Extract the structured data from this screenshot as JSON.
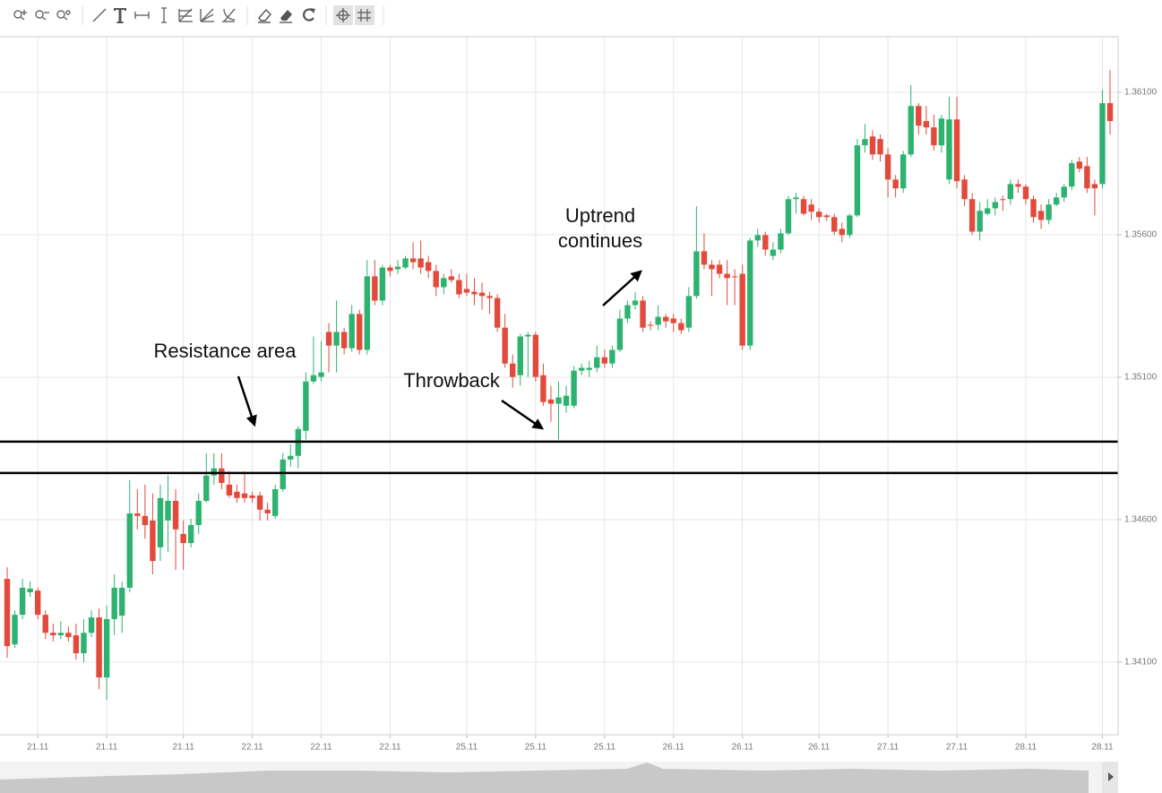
{
  "chart_data": {
    "type": "candlestick",
    "up_color": "#2db36f",
    "down_color": "#e24a3b",
    "ylim": [
      1.33845,
      1.36292
    ],
    "yticks": [
      {
        "value": 1.341,
        "label": "1.34100"
      },
      {
        "value": 1.346,
        "label": "1.34600"
      },
      {
        "value": 1.351,
        "label": "1.35100"
      },
      {
        "value": 1.356,
        "label": "1.35600"
      },
      {
        "value": 1.361,
        "label": "1.36100"
      }
    ],
    "grid": true,
    "categories": [
      null,
      null,
      null,
      null,
      "21.11",
      null,
      null,
      null,
      null,
      null,
      null,
      null,
      null,
      "21.11",
      null,
      null,
      null,
      null,
      null,
      null,
      null,
      null,
      null,
      "21.11",
      null,
      null,
      null,
      null,
      null,
      null,
      null,
      null,
      "22.11",
      null,
      null,
      null,
      null,
      null,
      null,
      null,
      null,
      "22.11",
      null,
      null,
      null,
      null,
      null,
      null,
      null,
      null,
      "22.11",
      null,
      null,
      null,
      null,
      null,
      null,
      null,
      null,
      null,
      "25.11",
      null,
      null,
      null,
      null,
      null,
      null,
      null,
      null,
      "25.11",
      null,
      null,
      null,
      null,
      null,
      null,
      null,
      null,
      "25.11",
      null,
      null,
      null,
      null,
      null,
      null,
      null,
      null,
      "26.11",
      null,
      null,
      null,
      null,
      null,
      null,
      null,
      null,
      "26.11",
      null,
      null,
      null,
      null,
      null,
      null,
      null,
      null,
      null,
      "26.11",
      null,
      null,
      null,
      null,
      null,
      null,
      null,
      null,
      "27.11",
      null,
      null,
      null,
      null,
      null,
      null,
      null,
      null,
      "27.11",
      null,
      null,
      null,
      null,
      null,
      null,
      null,
      null,
      "28.11",
      null,
      null,
      null,
      null,
      null,
      null,
      null,
      null,
      null,
      "28.11",
      null
    ],
    "open": [
      1.34392,
      1.34162,
      1.34266,
      1.34345,
      1.34351,
      1.34266,
      1.34203,
      1.34194,
      1.34203,
      1.34194,
      1.34131,
      1.34203,
      1.34257,
      1.34046,
      1.34251,
      1.34263,
      1.34361,
      1.34622,
      1.34613,
      1.34597,
      1.34503,
      1.34597,
      1.34666,
      1.3455,
      1.34518,
      1.34581,
      1.34666,
      1.34755,
      1.3478,
      1.34723,
      1.34698,
      1.34692,
      1.34685,
      1.34685,
      1.34635,
      1.34613,
      1.34707,
      1.34811,
      1.34824,
      1.34912,
      1.35085,
      1.35101,
      1.35259,
      1.35211,
      1.35259,
      1.35202,
      1.35322,
      1.35196,
      1.35454,
      1.35369,
      1.35485,
      1.35479,
      1.35485,
      1.35517,
      1.35517,
      1.35504,
      1.35473,
      1.35416,
      1.35454,
      1.35441,
      1.3541,
      1.354,
      1.35397,
      1.35385,
      1.35378,
      1.35274,
      1.35148,
      1.35107,
      1.35243,
      1.35249,
      1.35107,
      1.35022,
      1.35007,
      1.35,
      1.35,
      1.35123,
      1.35126,
      1.35133,
      1.3517,
      1.35148,
      1.35196,
      1.35306,
      1.35353,
      1.35369,
      1.35284,
      1.35284,
      1.35312,
      1.35306,
      1.3529,
      1.35274,
      1.35385,
      1.35542,
      1.35495,
      1.35495,
      1.35463,
      1.35454,
      1.35463,
      1.35211,
      1.3558,
      1.35599,
      1.35526,
      1.35548,
      1.35605,
      1.35725,
      1.35725,
      1.35706,
      1.35681,
      1.35668,
      1.35662,
      1.35621,
      1.35599,
      1.35668,
      1.35914,
      1.35945,
      1.35936,
      1.35882,
      1.35794,
      1.35763,
      1.35882,
      1.36052,
      1.35999,
      1.35977,
      1.35914,
      1.35794,
      1.36005,
      1.35794,
      1.35725,
      1.35611,
      1.35674,
      1.35693,
      1.35725,
      1.35725,
      1.35778,
      1.35769,
      1.35725,
      1.35684,
      1.35652,
      1.35706,
      1.35731,
      1.35769,
      1.35857,
      1.35841,
      1.35778,
      1.35778,
      1.36062
    ],
    "high": [
      1.34433,
      1.34282,
      1.34392,
      1.34383,
      1.34361,
      1.34282,
      1.34235,
      1.34244,
      1.34225,
      1.34235,
      1.34251,
      1.34282,
      1.34288,
      1.34298,
      1.34408,
      1.34383,
      1.34739,
      1.34707,
      1.34723,
      1.34692,
      1.34723,
      1.34755,
      1.34707,
      1.34597,
      1.34603,
      1.34692,
      1.34833,
      1.34833,
      1.34833,
      1.3477,
      1.34723,
      1.3477,
      1.34698,
      1.34698,
      1.3466,
      1.34723,
      1.34833,
      1.34865,
      1.34928,
      1.35117,
      1.35243,
      1.35227,
      1.3529,
      1.35369,
      1.35274,
      1.35353,
      1.35337,
      1.35511,
      1.35511,
      1.35495,
      1.35495,
      1.35511,
      1.35526,
      1.35574,
      1.3558,
      1.35526,
      1.35495,
      1.35463,
      1.35479,
      1.35463,
      1.35463,
      1.35448,
      1.35432,
      1.354,
      1.35391,
      1.35322,
      1.3518,
      1.35252,
      1.35259,
      1.35259,
      1.35148,
      1.3507,
      1.35085,
      1.3507,
      1.35139,
      1.35148,
      1.35158,
      1.35211,
      1.35196,
      1.35211,
      1.35337,
      1.35369,
      1.354,
      1.35385,
      1.35296,
      1.35353,
      1.35322,
      1.35322,
      1.35306,
      1.35416,
      1.357,
      1.35605,
      1.35511,
      1.35511,
      1.35511,
      1.35479,
      1.35495,
      1.35589,
      1.35621,
      1.35611,
      1.35574,
      1.35621,
      1.35737,
      1.35747,
      1.35737,
      1.35725,
      1.35693,
      1.35674,
      1.35674,
      1.35643,
      1.35674,
      1.35936,
      1.35989,
      1.35967,
      1.35952,
      1.35904,
      1.3581,
      1.35895,
      1.36125,
      1.36062,
      1.36052,
      1.36021,
      1.36021,
      1.36084,
      1.36084,
      1.3581,
      1.35747,
      1.35715,
      1.35725,
      1.35731,
      1.35737,
      1.35794,
      1.35794,
      1.35778,
      1.35737,
      1.35706,
      1.35725,
      1.35747,
      1.35778,
      1.35863,
      1.35873,
      1.35873,
      1.35794,
      1.36109,
      1.36178
    ],
    "low": [
      1.34115,
      1.3415,
      1.34251,
      1.34329,
      1.34251,
      1.34181,
      1.34172,
      1.34181,
      1.34172,
      1.34109,
      1.34099,
      1.34188,
      1.34005,
      1.33967,
      1.34194,
      1.34203,
      1.34345,
      1.34566,
      1.34534,
      1.34408,
      1.34455,
      1.34487,
      1.34424,
      1.34424,
      1.34503,
      1.3455,
      1.3466,
      1.34723,
      1.34707,
      1.34676,
      1.3466,
      1.3466,
      1.3466,
      1.34597,
      1.34597,
      1.34603,
      1.34698,
      1.34786,
      1.3478,
      1.34881,
      1.35076,
      1.35085,
      1.35117,
      1.35117,
      1.3518,
      1.35189,
      1.3518,
      1.3518,
      1.35353,
      1.35353,
      1.35454,
      1.35463,
      1.35479,
      1.35479,
      1.35463,
      1.35448,
      1.35385,
      1.35391,
      1.35432,
      1.35378,
      1.35385,
      1.35353,
      1.35337,
      1.35322,
      1.35259,
      1.35133,
      1.35063,
      1.3507,
      1.35101,
      1.35085,
      1.35,
      1.34944,
      1.34881,
      1.34975,
      1.34991,
      1.35107,
      1.35101,
      1.35117,
      1.35133,
      1.35133,
      1.35189,
      1.3529,
      1.35337,
      1.35259,
      1.35265,
      1.35265,
      1.35274,
      1.35259,
      1.35252,
      1.35259,
      1.35375,
      1.35479,
      1.35385,
      1.35448,
      1.35353,
      1.35353,
      1.35196,
      1.35196,
      1.35558,
      1.35526,
      1.35511,
      1.35536,
      1.35599,
      1.35674,
      1.35668,
      1.35652,
      1.35643,
      1.35649,
      1.35599,
      1.35574,
      1.35589,
      1.35662,
      1.35888,
      1.35863,
      1.35857,
      1.35731,
      1.35731,
      1.35747,
      1.35873,
      1.35952,
      1.35952,
      1.35895,
      1.35888,
      1.35778,
      1.35763,
      1.357,
      1.35599,
      1.3558,
      1.35668,
      1.35668,
      1.35684,
      1.35706,
      1.35747,
      1.35706,
      1.35643,
      1.35621,
      1.35637,
      1.357,
      1.35715,
      1.35756,
      1.35819,
      1.35747,
      1.35668,
      1.35763,
      1.35952
    ],
    "close": [
      1.34156,
      1.34266,
      1.34361,
      1.34358,
      1.34266,
      1.34203,
      1.34194,
      1.34203,
      1.34188,
      1.34131,
      1.34203,
      1.34257,
      1.34046,
      1.34251,
      1.34361,
      1.34361,
      1.34622,
      1.34613,
      1.34581,
      1.34455,
      1.34676,
      1.34666,
      1.34566,
      1.34518,
      1.34581,
      1.34666,
      1.34755,
      1.3478,
      1.34729,
      1.34685,
      1.34676,
      1.34676,
      1.34676,
      1.34635,
      1.34622,
      1.34707,
      1.34811,
      1.34824,
      1.34918,
      1.35085,
      1.35107,
      1.35117,
      1.35211,
      1.35259,
      1.35202,
      1.35322,
      1.35196,
      1.35454,
      1.35369,
      1.35485,
      1.35473,
      1.35488,
      1.35517,
      1.35504,
      1.35485,
      1.35473,
      1.35416,
      1.35448,
      1.35441,
      1.35391,
      1.35397,
      1.35391,
      1.35385,
      1.35378,
      1.35274,
      1.35148,
      1.35101,
      1.35243,
      1.35249,
      1.35101,
      1.35013,
      1.35007,
      1.35029,
      1.35035,
      1.35123,
      1.35133,
      1.35133,
      1.3517,
      1.35148,
      1.35196,
      1.35306,
      1.35353,
      1.35369,
      1.35274,
      1.35281,
      1.35312,
      1.35296,
      1.3529,
      1.35265,
      1.35385,
      1.35542,
      1.35495,
      1.35479,
      1.35463,
      1.35448,
      1.35451,
      1.35211,
      1.3558,
      1.35599,
      1.35548,
      1.35548,
      1.35605,
      1.35725,
      1.35731,
      1.35674,
      1.35681,
      1.35662,
      1.35662,
      1.35611,
      1.35599,
      1.35668,
      1.35914,
      1.35936,
      1.35882,
      1.35882,
      1.35794,
      1.35763,
      1.35882,
      1.36052,
      1.35983,
      1.35977,
      1.35914,
      1.36008,
      1.36005,
      1.35788,
      1.35725,
      1.35611,
      1.35684,
      1.35693,
      1.35715,
      1.35722,
      1.35778,
      1.35769,
      1.35725,
      1.35662,
      1.35652,
      1.35706,
      1.35731,
      1.35769,
      1.35851,
      1.35832,
      1.35763,
      1.35763,
      1.36062,
      1.35999
    ],
    "hlines": [
      1.34874,
      1.34764
    ],
    "hline_color": "#000000",
    "annotations": [
      "Resistance area",
      "Throwback",
      "Uptrend continues"
    ]
  }
}
